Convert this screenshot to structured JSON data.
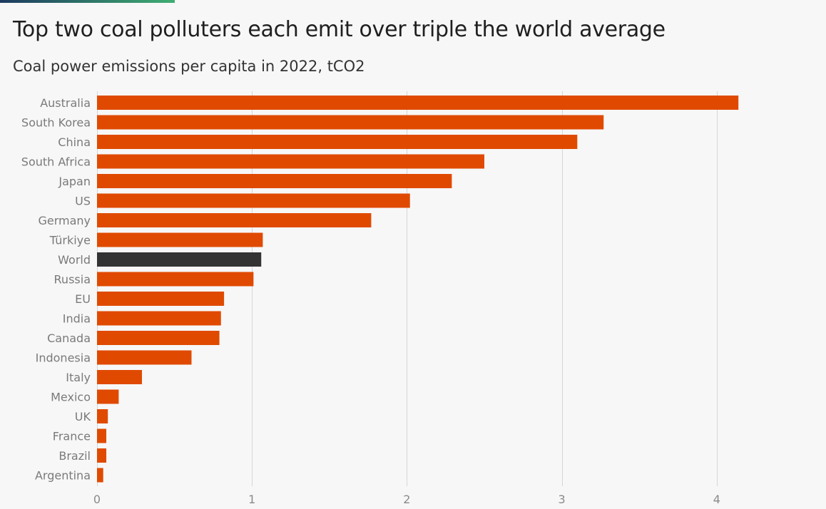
{
  "header": {
    "title": "Top two coal polluters each emit over triple the world average",
    "subtitle": "Coal power emissions per capita in 2022, tCO2"
  },
  "colors": {
    "bar": "#e04a00",
    "highlight": "#333333",
    "grid": "#d6d6d6",
    "accent_start": "#1d3a5f",
    "accent_end": "#3fae72"
  },
  "chart_data": {
    "type": "bar",
    "orientation": "horizontal",
    "title": "Top two coal polluters each emit over triple the world average",
    "subtitle": "Coal power emissions per capita in 2022, tCO2",
    "categories": [
      "Australia",
      "South Korea",
      "China",
      "South Africa",
      "Japan",
      "US",
      "Germany",
      "Türkiye",
      "World",
      "Russia",
      "EU",
      "India",
      "Canada",
      "Indonesia",
      "Italy",
      "Mexico",
      "UK",
      "France",
      "Brazil",
      "Argentina"
    ],
    "values": [
      4.14,
      3.27,
      3.1,
      2.5,
      2.29,
      2.02,
      1.77,
      1.07,
      1.06,
      1.01,
      0.82,
      0.8,
      0.79,
      0.61,
      0.29,
      0.14,
      0.07,
      0.06,
      0.06,
      0.04
    ],
    "highlight": [
      "World"
    ],
    "xlim": [
      0,
      4.5
    ],
    "xticks": [
      0,
      1,
      2,
      3,
      4
    ],
    "grid": true,
    "legend": "none"
  }
}
